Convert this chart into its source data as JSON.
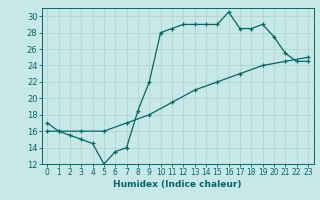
{
  "title": "",
  "xlabel": "Humidex (Indice chaleur)",
  "bg_color": "#c8e8e8",
  "grid_color": "#b0d4d4",
  "line_color": "#006868",
  "xlim": [
    -0.5,
    23.5
  ],
  "ylim": [
    12,
    31
  ],
  "xticks": [
    0,
    1,
    2,
    3,
    4,
    5,
    6,
    7,
    8,
    9,
    10,
    11,
    12,
    13,
    14,
    15,
    16,
    17,
    18,
    19,
    20,
    21,
    22,
    23
  ],
  "yticks": [
    12,
    14,
    16,
    18,
    20,
    22,
    24,
    26,
    28,
    30
  ],
  "line1_x": [
    0,
    1,
    2,
    3,
    4,
    5,
    6,
    7,
    8,
    9,
    10,
    11,
    12,
    13,
    14,
    15,
    16,
    17,
    18,
    19,
    20,
    21,
    22,
    23
  ],
  "line1_y": [
    17,
    16,
    15.5,
    15,
    14.5,
    12,
    13.5,
    14,
    18.5,
    22,
    28,
    28.5,
    29,
    29,
    29,
    29,
    30.5,
    28.5,
    28.5,
    29,
    27.5,
    25.5,
    24.5,
    24.5
  ],
  "line2_x": [
    0,
    1,
    3,
    5,
    7,
    9,
    11,
    13,
    15,
    17,
    19,
    21,
    23
  ],
  "line2_y": [
    16,
    16,
    16,
    16,
    17,
    18,
    19.5,
    21,
    22,
    23,
    24,
    24.5,
    25
  ],
  "tick_fontsize": 5.5,
  "xlabel_fontsize": 6.5
}
